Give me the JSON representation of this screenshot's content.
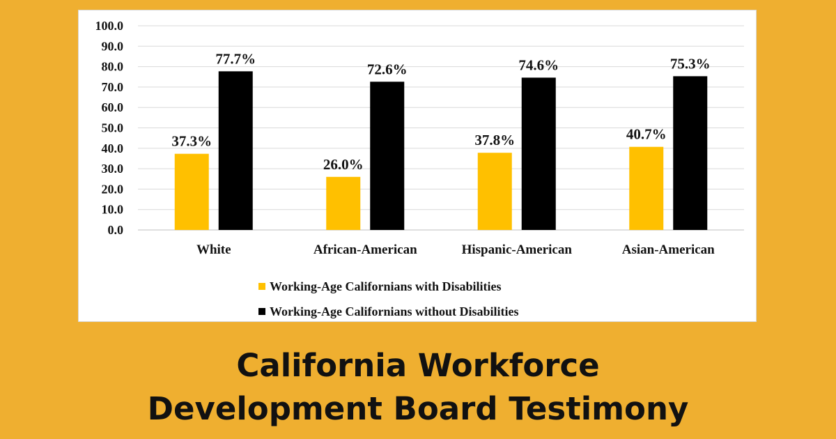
{
  "footer": {
    "line1": "California Workforce",
    "line2": "Development Board Testimony"
  },
  "colors": {
    "background": "#EFAF30",
    "series_with": "#FFC000",
    "series_without": "#000000"
  },
  "chart_data": {
    "type": "bar",
    "categories": [
      "White",
      "African-American",
      "Hispanic-American",
      "Asian-American"
    ],
    "series": [
      {
        "name": "Working-Age Californians with Disabilities",
        "values": [
          37.3,
          26.0,
          37.8,
          40.7
        ],
        "labels": [
          "37.3%",
          "26.0%",
          "37.8%",
          "40.7%"
        ],
        "color": "#FFC000"
      },
      {
        "name": "Working-Age Californians without Disabilities",
        "values": [
          77.7,
          72.6,
          74.6,
          75.3
        ],
        "labels": [
          "77.7%",
          "72.6%",
          "74.6%",
          "75.3%"
        ],
        "color": "#000000"
      }
    ],
    "ylim": [
      0,
      100
    ],
    "yticks": [
      "0.0",
      "10.0",
      "20.0",
      "30.0",
      "40.0",
      "50.0",
      "60.0",
      "70.0",
      "80.0",
      "90.0",
      "100.0"
    ],
    "grid": true,
    "legend_position": "bottom"
  }
}
